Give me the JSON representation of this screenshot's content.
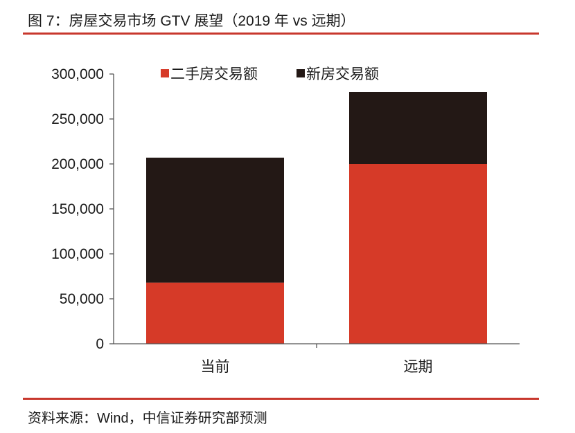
{
  "title": "图 7：房屋交易市场 GTV 展望（2019 年 vs 远期）",
  "source": "资料来源：Wind，中信证券研究部预测",
  "colors": {
    "rule": "#c8372d",
    "second_hand": "#d63a28",
    "new_home": "#231815"
  },
  "chart_data": {
    "type": "bar",
    "stacked": true,
    "categories": [
      "当前",
      "远期"
    ],
    "series": [
      {
        "name": "二手房交易额",
        "values": [
          68000,
          200000
        ],
        "color": "#d63a28"
      },
      {
        "name": "新房交易额",
        "values": [
          139000,
          80000
        ],
        "color": "#231815"
      }
    ],
    "ylim": [
      0,
      300000
    ],
    "yticks": [
      0,
      50000,
      100000,
      150000,
      200000,
      250000,
      300000
    ],
    "ytick_labels": [
      "0",
      "50,000",
      "100,000",
      "150,000",
      "200,000",
      "250,000",
      "300,000"
    ],
    "legend_position": "top",
    "grid": false,
    "xlabel": "",
    "ylabel": ""
  }
}
